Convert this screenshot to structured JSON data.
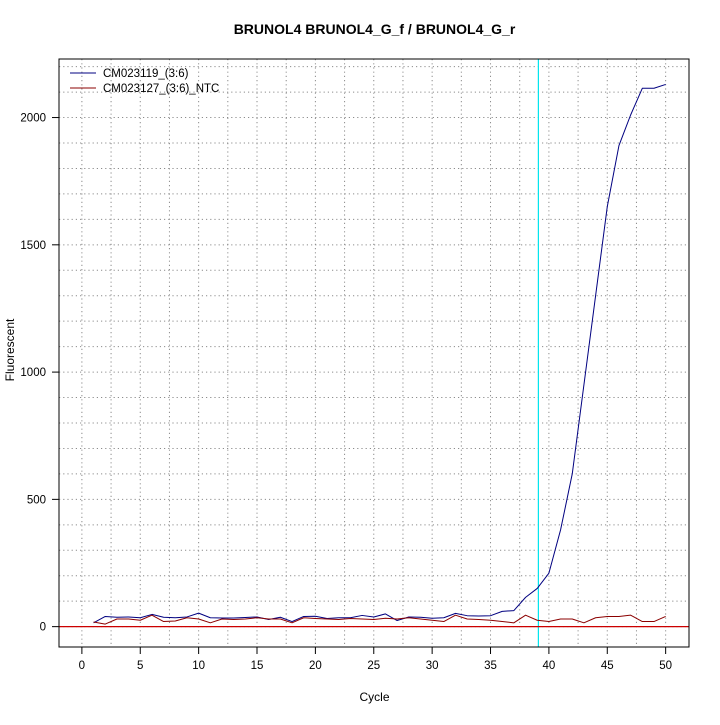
{
  "chart_data": {
    "type": "line",
    "title": "BRUNOL4  BRUNOL4_G_f / BRUNOL4_G_r",
    "xlabel": "Cycle",
    "ylabel": "Fluorescent",
    "xlim": [
      -1.96,
      52.0
    ],
    "ylim": [
      -80,
      2230
    ],
    "x_ticks": [
      0,
      5,
      10,
      15,
      20,
      25,
      30,
      35,
      40,
      45,
      50
    ],
    "y_ticks": [
      0,
      500,
      1000,
      1500,
      2000
    ],
    "x_grid": [
      0,
      2.5,
      5,
      7.5,
      10,
      12.5,
      15,
      17.5,
      20,
      22.5,
      25,
      27.5,
      30,
      32.5,
      35,
      37.5,
      40,
      42.5,
      45,
      47.5,
      50
    ],
    "y_grid": [
      0,
      100,
      200,
      300,
      400,
      500,
      600,
      700,
      800,
      900,
      1000,
      1100,
      1200,
      1300,
      1400,
      1500,
      1600,
      1700,
      1800,
      1900,
      2000,
      2100,
      2200
    ],
    "grid": true,
    "legend_position": "top-left",
    "threshold_cycle": 39.1,
    "threshold_color": "#00e5ee",
    "baseline_y": 0,
    "baseline_color": "#cc0000",
    "x": [
      1,
      2,
      3,
      4,
      5,
      6,
      7,
      8,
      9,
      10,
      11,
      12,
      13,
      14,
      15,
      16,
      17,
      18,
      19,
      20,
      21,
      22,
      23,
      24,
      25,
      26,
      27,
      28,
      29,
      30,
      31,
      32,
      33,
      34,
      35,
      36,
      37,
      38,
      39,
      40,
      41,
      42,
      43,
      44,
      45,
      46,
      47,
      48,
      49,
      50
    ],
    "series": [
      {
        "name": "CM023119_(3:6)",
        "color": "#000080",
        "values": [
          15,
          40,
          37,
          38,
          35,
          48,
          37,
          35,
          38,
          53,
          35,
          34,
          34,
          36,
          38,
          28,
          37,
          20,
          40,
          41,
          32,
          35,
          35,
          44,
          38,
          50,
          24,
          38,
          37,
          33,
          35,
          52,
          43,
          42,
          43,
          60,
          63,
          115,
          150,
          210,
          380,
          600,
          950,
          1300,
          1650,
          1890,
          2010,
          2115,
          2115,
          2130
        ]
      },
      {
        "name": "CM023127_(3:6)_NTC",
        "color": "#8b0000",
        "values": [
          18,
          10,
          30,
          30,
          25,
          45,
          20,
          22,
          35,
          30,
          15,
          30,
          28,
          30,
          35,
          30,
          30,
          15,
          35,
          32,
          30,
          28,
          32,
          30,
          28,
          33,
          30,
          35,
          30,
          25,
          20,
          45,
          30,
          28,
          25,
          20,
          15,
          45,
          25,
          20,
          30,
          30,
          15,
          35,
          40,
          40,
          45,
          20,
          20,
          40
        ]
      }
    ]
  }
}
